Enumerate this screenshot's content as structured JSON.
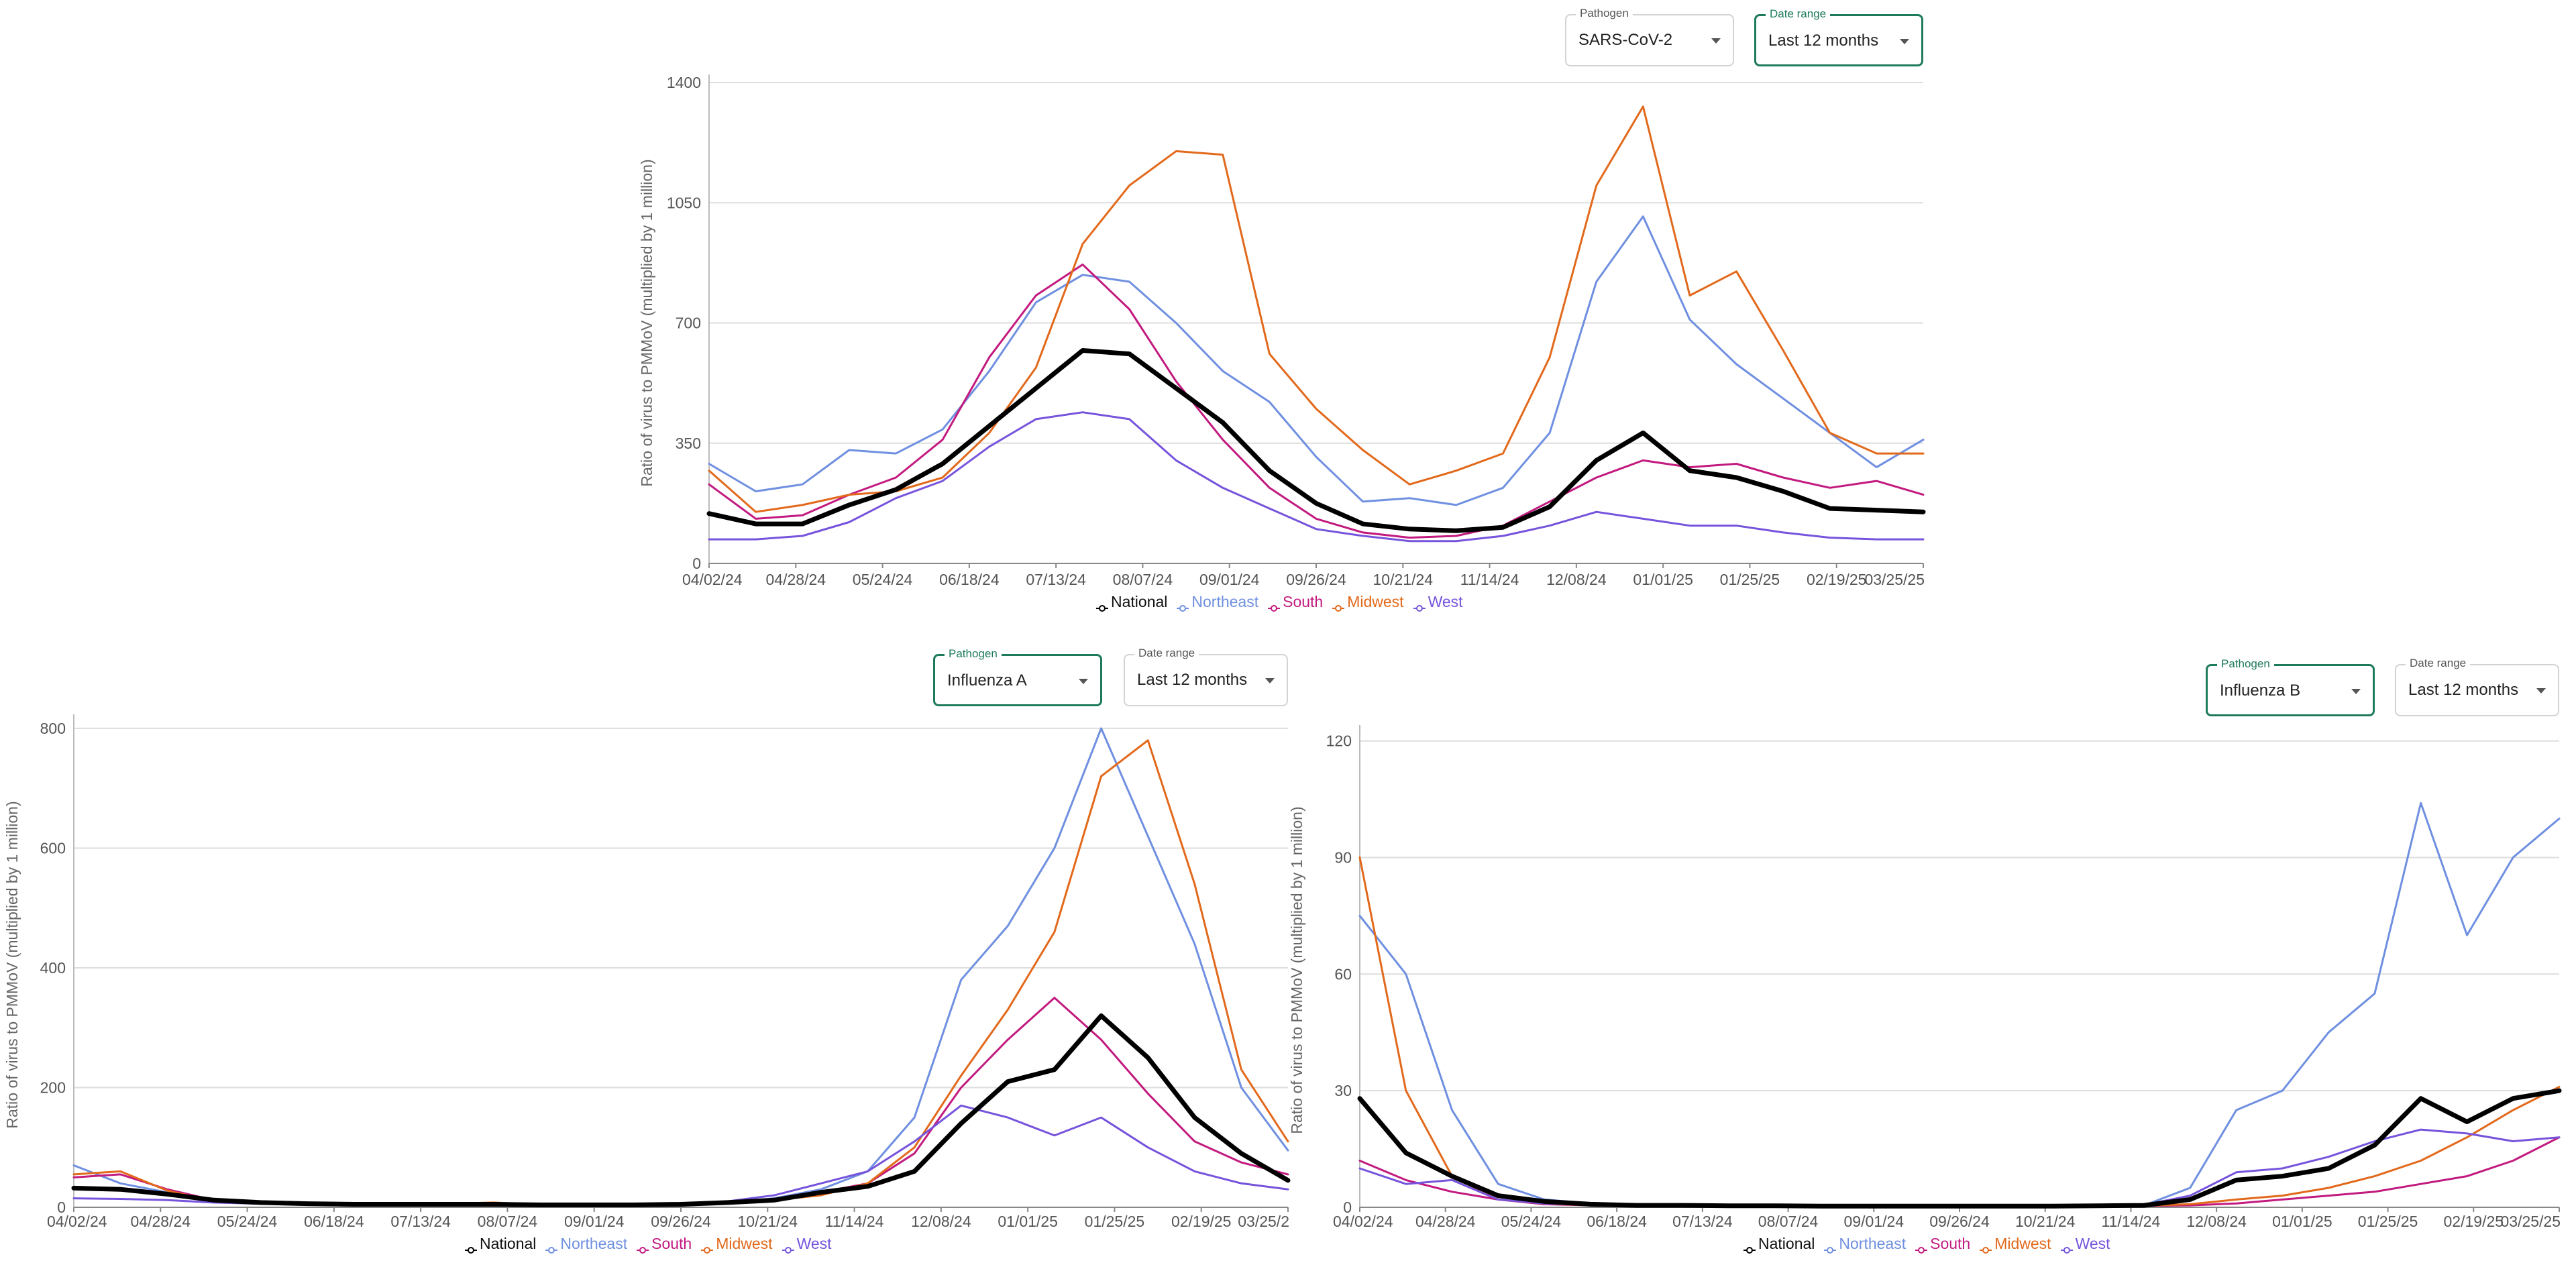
{
  "controls": {
    "pathogen_label": "Pathogen",
    "date_range_label": "Date range"
  },
  "legend": [
    "National",
    "Northeast",
    "South",
    "Midwest",
    "West"
  ],
  "colors": {
    "National": "#000000",
    "Northeast": "#6f8fe0",
    "South": "#c21a7f",
    "Midwest": "#e2691b",
    "West": "#7654dc",
    "grid": "#dddddd",
    "active_border": "#1e7a5c"
  },
  "chart_data": [
    {
      "id": "sars",
      "type": "line",
      "pathogen": "SARS-CoV-2",
      "date_range": "Last 12 months",
      "ylabel": "Ratio of virus to PMMoV (multiplied by 1 million)",
      "ylim": [
        0,
        1400
      ],
      "yticks": [
        "0",
        "350",
        "700",
        "1050",
        "1400"
      ],
      "xticks": [
        "04/02/24",
        "04/28/24",
        "05/24/24",
        "06/18/24",
        "07/13/24",
        "08/07/24",
        "09/01/24",
        "09/26/24",
        "10/21/24",
        "11/14/24",
        "12/08/24",
        "01/01/25",
        "01/25/25",
        "02/19/25",
        "03/25/25"
      ],
      "x_points": [
        "04/02/24",
        "04/16/24",
        "04/30/24",
        "05/14/24",
        "05/28/24",
        "06/11/24",
        "06/25/24",
        "07/09/24",
        "07/23/24",
        "08/06/24",
        "08/20/24",
        "09/03/24",
        "09/17/24",
        "10/01/24",
        "10/15/24",
        "10/29/24",
        "11/12/24",
        "11/26/24",
        "12/10/24",
        "12/24/24",
        "01/07/25",
        "01/21/25",
        "02/04/25",
        "02/18/25",
        "03/04/25",
        "03/18/25",
        "03/31/25"
      ],
      "series": [
        {
          "name": "National",
          "values": [
            145,
            115,
            115,
            170,
            215,
            290,
            400,
            510,
            620,
            610,
            510,
            410,
            270,
            175,
            115,
            100,
            95,
            105,
            165,
            300,
            380,
            270,
            250,
            210,
            160,
            155,
            150
          ]
        },
        {
          "name": "Northeast",
          "values": [
            290,
            210,
            230,
            330,
            320,
            390,
            560,
            760,
            840,
            820,
            700,
            560,
            470,
            310,
            180,
            190,
            170,
            220,
            380,
            820,
            1010,
            710,
            580,
            480,
            380,
            280,
            360
          ]
        },
        {
          "name": "South",
          "values": [
            230,
            130,
            140,
            200,
            250,
            360,
            600,
            780,
            870,
            740,
            530,
            360,
            220,
            130,
            90,
            75,
            80,
            110,
            180,
            250,
            300,
            280,
            290,
            250,
            220,
            240,
            200
          ]
        },
        {
          "name": "Midwest",
          "values": [
            270,
            150,
            170,
            200,
            210,
            250,
            380,
            570,
            930,
            1100,
            1200,
            1190,
            610,
            450,
            330,
            230,
            270,
            320,
            600,
            1100,
            1330,
            780,
            850,
            620,
            380,
            320,
            320
          ]
        },
        {
          "name": "West",
          "values": [
            70,
            70,
            80,
            120,
            190,
            240,
            340,
            420,
            440,
            420,
            300,
            220,
            160,
            100,
            80,
            65,
            65,
            80,
            110,
            150,
            130,
            110,
            110,
            90,
            75,
            70,
            70
          ]
        }
      ]
    },
    {
      "id": "fluA",
      "type": "line",
      "pathogen": "Influenza A",
      "date_range": "Last 12 months",
      "ylabel": "Ratio of virus to PMMoV (multiplied by 1 million)",
      "ylim": [
        0,
        810
      ],
      "yticks": [
        "0",
        "200",
        "400",
        "600",
        "800"
      ],
      "xticks": [
        "04/02/24",
        "04/28/24",
        "05/24/24",
        "06/18/24",
        "07/13/24",
        "08/07/24",
        "09/01/24",
        "09/26/24",
        "10/21/24",
        "11/14/24",
        "12/08/24",
        "01/01/25",
        "01/25/25",
        "02/19/25",
        "03/25/2"
      ],
      "x_points": [
        "04/02/24",
        "04/16/24",
        "04/30/24",
        "05/14/24",
        "05/28/24",
        "06/11/24",
        "06/25/24",
        "07/09/24",
        "07/23/24",
        "08/06/24",
        "08/20/24",
        "09/03/24",
        "09/17/24",
        "10/01/24",
        "10/15/24",
        "10/29/24",
        "11/12/24",
        "11/26/24",
        "12/10/24",
        "12/24/24",
        "01/07/25",
        "01/21/25",
        "02/04/25",
        "02/18/25",
        "03/04/25",
        "03/18/25",
        "03/31/25"
      ],
      "series": [
        {
          "name": "National",
          "values": [
            32,
            30,
            22,
            12,
            8,
            6,
            5,
            5,
            5,
            5,
            4,
            4,
            4,
            5,
            8,
            12,
            25,
            35,
            60,
            140,
            210,
            230,
            320,
            250,
            150,
            90,
            45
          ]
        },
        {
          "name": "Northeast",
          "values": [
            70,
            40,
            25,
            10,
            7,
            5,
            4,
            4,
            4,
            4,
            3,
            3,
            3,
            4,
            8,
            15,
            30,
            60,
            150,
            380,
            470,
            600,
            800,
            620,
            440,
            200,
            95
          ]
        },
        {
          "name": "South",
          "values": [
            50,
            55,
            30,
            12,
            8,
            6,
            5,
            5,
            5,
            5,
            4,
            4,
            4,
            5,
            8,
            12,
            25,
            40,
            90,
            200,
            280,
            350,
            280,
            190,
            110,
            75,
            55
          ]
        },
        {
          "name": "Midwest",
          "values": [
            55,
            60,
            28,
            10,
            6,
            5,
            4,
            5,
            6,
            8,
            4,
            4,
            4,
            5,
            8,
            12,
            20,
            40,
            100,
            220,
            330,
            460,
            720,
            780,
            540,
            230,
            110
          ]
        },
        {
          "name": "West",
          "values": [
            15,
            14,
            12,
            8,
            6,
            5,
            4,
            4,
            4,
            4,
            4,
            4,
            4,
            5,
            10,
            20,
            40,
            60,
            110,
            170,
            150,
            120,
            150,
            100,
            60,
            40,
            30
          ]
        }
      ]
    },
    {
      "id": "fluB",
      "type": "line",
      "pathogen": "Influenza B",
      "date_range": "Last 12 months",
      "ylabel": "Ratio of virus to PMMoV (multiplied by 1 million)",
      "ylim": [
        0,
        122
      ],
      "yticks": [
        "0",
        "30",
        "60",
        "90",
        "120"
      ],
      "xticks": [
        "04/02/24",
        "04/28/24",
        "05/24/24",
        "06/18/24",
        "07/13/24",
        "08/07/24",
        "09/01/24",
        "09/26/24",
        "10/21/24",
        "11/14/24",
        "12/08/24",
        "01/01/25",
        "01/25/25",
        "02/19/25",
        "03/25/25"
      ],
      "x_points": [
        "04/02/24",
        "04/16/24",
        "04/30/24",
        "05/14/24",
        "05/28/24",
        "06/11/24",
        "06/25/24",
        "07/09/24",
        "07/23/24",
        "08/06/24",
        "08/20/24",
        "09/03/24",
        "09/17/24",
        "10/01/24",
        "10/15/24",
        "10/29/24",
        "11/12/24",
        "11/26/24",
        "12/10/24",
        "12/24/24",
        "01/07/25",
        "01/21/25",
        "02/04/25",
        "02/18/25",
        "03/04/25",
        "03/18/25",
        "03/31/25"
      ],
      "series": [
        {
          "name": "National",
          "values": [
            28,
            14,
            8,
            3,
            1.5,
            0.8,
            0.5,
            0.5,
            0.4,
            0.4,
            0.3,
            0.3,
            0.3,
            0.3,
            0.3,
            0.3,
            0.4,
            0.5,
            2,
            7,
            8,
            10,
            16,
            28,
            22,
            28,
            30
          ]
        },
        {
          "name": "Northeast",
          "values": [
            75,
            60,
            25,
            6,
            2,
            1,
            0.6,
            0.5,
            0.4,
            0.4,
            0.3,
            0.3,
            0.3,
            0.3,
            0.3,
            0.3,
            0.4,
            0.5,
            5,
            25,
            30,
            45,
            55,
            104,
            70,
            90,
            100
          ]
        },
        {
          "name": "South",
          "values": [
            12,
            7,
            4,
            2,
            0.8,
            0.5,
            0.4,
            0.4,
            0.3,
            0.3,
            0.3,
            0.3,
            0.3,
            0.3,
            0.3,
            0.3,
            0.3,
            0.4,
            0.5,
            1,
            2,
            3,
            4,
            6,
            8,
            12,
            18
          ]
        },
        {
          "name": "Midwest",
          "values": [
            90,
            30,
            8,
            2,
            1,
            0.5,
            0.4,
            0.4,
            0.3,
            0.3,
            0.3,
            0.3,
            0.3,
            0.3,
            0.3,
            0.3,
            0.3,
            0.4,
            0.8,
            2,
            3,
            5,
            8,
            12,
            18,
            25,
            31
          ]
        },
        {
          "name": "West",
          "values": [
            10,
            6,
            7,
            2,
            1,
            0.6,
            0.5,
            0.4,
            0.4,
            0.4,
            0.3,
            0.3,
            0.3,
            0.3,
            0.3,
            0.3,
            0.4,
            0.6,
            3,
            9,
            10,
            13,
            17,
            20,
            19,
            17,
            18
          ]
        }
      ]
    }
  ]
}
